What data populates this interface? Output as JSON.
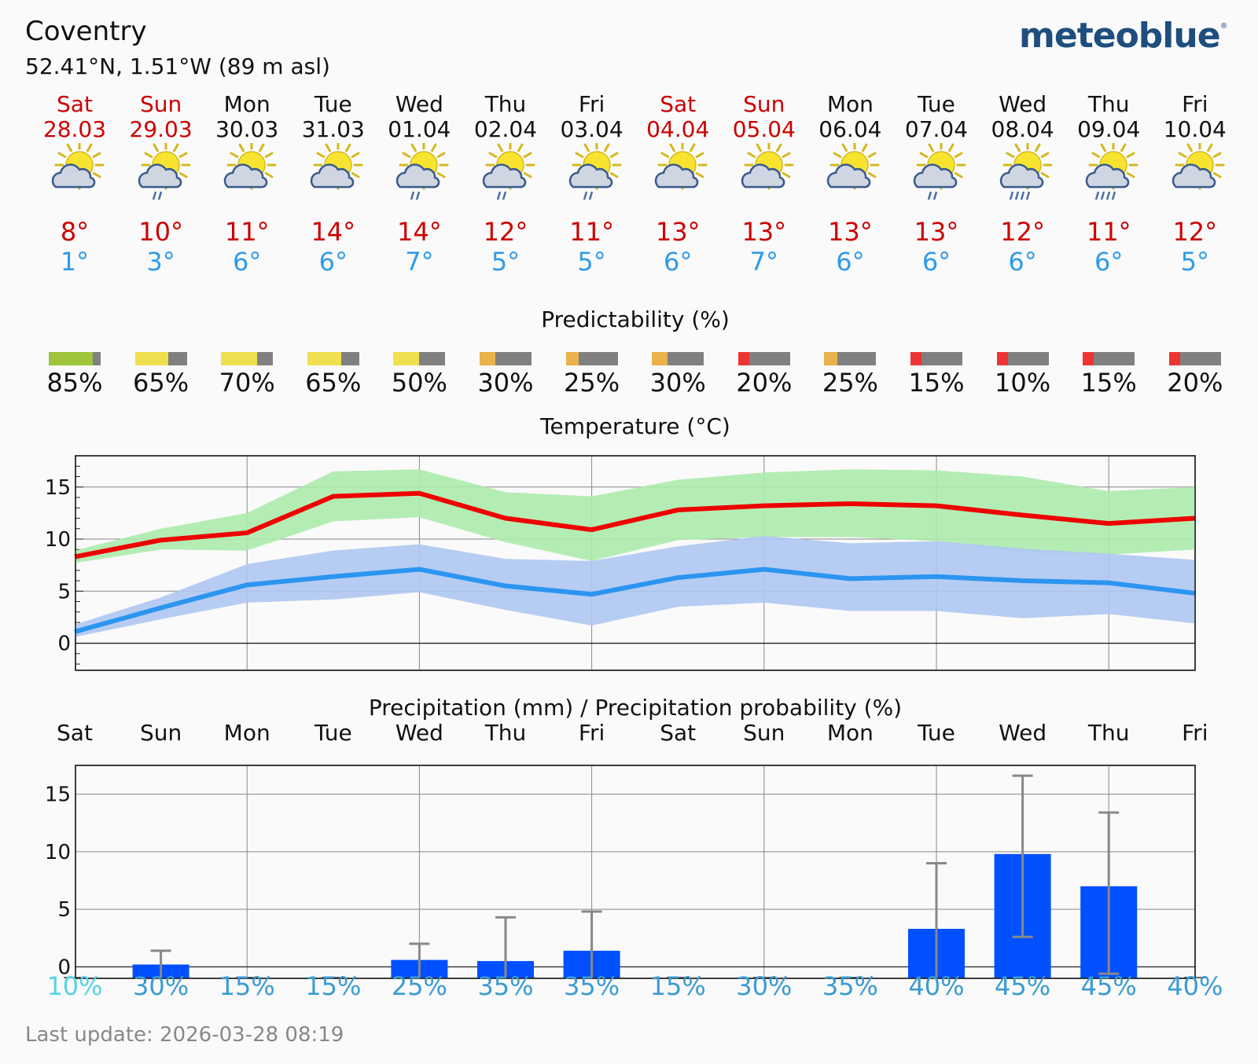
{
  "header": {
    "location": "Coventry",
    "coordinates": "52.41°N, 1.51°W (89 m asl)",
    "brand": "meteoblue",
    "brand_mark": "®"
  },
  "days": [
    {
      "name": "Sat",
      "date": "28.03",
      "weekend": true,
      "icon": "sun-cloud-icon",
      "tmax": "8°",
      "tmin": "1°"
    },
    {
      "name": "Sun",
      "date": "29.03",
      "weekend": true,
      "icon": "sun-cloud-drizzle-icon",
      "tmax": "10°",
      "tmin": "3°"
    },
    {
      "name": "Mon",
      "date": "30.03",
      "weekend": false,
      "icon": "sun-cloud-icon",
      "tmax": "11°",
      "tmin": "6°"
    },
    {
      "name": "Tue",
      "date": "31.03",
      "weekend": false,
      "icon": "sun-cloud-icon",
      "tmax": "14°",
      "tmin": "6°"
    },
    {
      "name": "Wed",
      "date": "01.04",
      "weekend": false,
      "icon": "sun-cloud-drizzle-icon",
      "tmax": "14°",
      "tmin": "7°"
    },
    {
      "name": "Thu",
      "date": "02.04",
      "weekend": false,
      "icon": "sun-cloud-drizzle-icon",
      "tmax": "12°",
      "tmin": "5°"
    },
    {
      "name": "Fri",
      "date": "03.04",
      "weekend": false,
      "icon": "sun-cloud-drizzle-icon",
      "tmax": "11°",
      "tmin": "5°"
    },
    {
      "name": "Sat",
      "date": "04.04",
      "weekend": true,
      "icon": "sun-cloud-icon",
      "tmax": "13°",
      "tmin": "6°"
    },
    {
      "name": "Sun",
      "date": "05.04",
      "weekend": true,
      "icon": "sun-cloud-icon",
      "tmax": "13°",
      "tmin": "7°"
    },
    {
      "name": "Mon",
      "date": "06.04",
      "weekend": false,
      "icon": "sun-cloud-icon",
      "tmax": "13°",
      "tmin": "6°"
    },
    {
      "name": "Tue",
      "date": "07.04",
      "weekend": false,
      "icon": "sun-cloud-drizzle-icon",
      "tmax": "13°",
      "tmin": "6°"
    },
    {
      "name": "Wed",
      "date": "08.04",
      "weekend": false,
      "icon": "sun-cloud-rain-icon",
      "tmax": "12°",
      "tmin": "6°"
    },
    {
      "name": "Thu",
      "date": "09.04",
      "weekend": false,
      "icon": "sun-cloud-rain-icon",
      "tmax": "11°",
      "tmin": "6°"
    },
    {
      "name": "Fri",
      "date": "10.04",
      "weekend": false,
      "icon": "sun-cloud-icon",
      "tmax": "12°",
      "tmin": "5°"
    }
  ],
  "predictability": {
    "title": "Predictability (%)",
    "items": [
      {
        "label": "85%",
        "value": 85,
        "color": "#9dc43b"
      },
      {
        "label": "65%",
        "value": 65,
        "color": "#f0e050"
      },
      {
        "label": "70%",
        "value": 70,
        "color": "#f0e050"
      },
      {
        "label": "65%",
        "value": 65,
        "color": "#f0e050"
      },
      {
        "label": "50%",
        "value": 50,
        "color": "#f0e050"
      },
      {
        "label": "30%",
        "value": 30,
        "color": "#eab24a"
      },
      {
        "label": "25%",
        "value": 25,
        "color": "#eab24a"
      },
      {
        "label": "30%",
        "value": 30,
        "color": "#eab24a"
      },
      {
        "label": "20%",
        "value": 20,
        "color": "#ee3333"
      },
      {
        "label": "25%",
        "value": 25,
        "color": "#eab24a"
      },
      {
        "label": "15%",
        "value": 15,
        "color": "#ee3333"
      },
      {
        "label": "10%",
        "value": 10,
        "color": "#ee3333"
      },
      {
        "label": "15%",
        "value": 15,
        "color": "#ee3333"
      },
      {
        "label": "20%",
        "value": 20,
        "color": "#ee3333"
      }
    ],
    "remainder_color": "#808080"
  },
  "chart_data": [
    {
      "type": "line",
      "title": "Temperature (°C)",
      "xlabel": "",
      "ylabel": "",
      "ylim": [
        -2.6,
        18
      ],
      "yticks": [
        "0",
        "5",
        "10",
        "15"
      ],
      "x": [
        "Sat",
        "Sun",
        "Mon",
        "Tue",
        "Wed",
        "Thu",
        "Fri",
        "Sat",
        "Sun",
        "Mon",
        "Tue",
        "Wed",
        "Thu",
        "Fri"
      ],
      "series": [
        {
          "name": "Max temperature",
          "color": "#ee0000",
          "values": [
            8.3,
            9.9,
            10.6,
            14.1,
            14.4,
            12.0,
            10.9,
            12.8,
            13.2,
            13.4,
            13.2,
            12.3,
            11.5,
            12.0
          ]
        },
        {
          "name": "Max temperature range high",
          "color": "#acebac",
          "values": [
            8.9,
            11.0,
            12.5,
            16.5,
            16.7,
            14.5,
            14.1,
            15.7,
            16.4,
            16.7,
            16.6,
            16.0,
            14.6,
            15.0
          ]
        },
        {
          "name": "Max temperature range low",
          "color": "#acebac",
          "values": [
            7.7,
            9.0,
            8.9,
            11.7,
            12.1,
            9.7,
            7.9,
            9.9,
            10.2,
            10.2,
            9.8,
            8.7,
            8.5,
            9.0
          ]
        },
        {
          "name": "Min temperature",
          "color": "#2b95f0",
          "values": [
            1.1,
            3.4,
            5.6,
            6.4,
            7.1,
            5.5,
            4.7,
            6.3,
            7.1,
            6.2,
            6.4,
            6.0,
            5.8,
            4.8
          ]
        },
        {
          "name": "Min temperature range high",
          "color": "#aec6f2",
          "values": [
            1.8,
            4.4,
            7.6,
            8.9,
            9.5,
            8.1,
            7.9,
            9.3,
            10.3,
            9.6,
            9.8,
            9.1,
            8.6,
            8.0
          ]
        },
        {
          "name": "Min temperature range low",
          "color": "#aec6f2",
          "values": [
            0.6,
            2.3,
            3.9,
            4.2,
            4.9,
            3.2,
            1.7,
            3.5,
            3.9,
            3.1,
            3.1,
            2.4,
            2.8,
            1.9
          ]
        }
      ]
    },
    {
      "type": "bar",
      "title": "Precipitation (mm) / Precipitation probability (%)",
      "xlabel": "",
      "ylabel": "",
      "ylim": [
        -1,
        17.5
      ],
      "yticks": [
        "0",
        "5",
        "10",
        "15"
      ],
      "categories": [
        "Sat",
        "Sun",
        "Mon",
        "Tue",
        "Wed",
        "Thu",
        "Fri",
        "Sat",
        "Sun",
        "Mon",
        "Tue",
        "Wed",
        "Thu",
        "Fri"
      ],
      "series": [
        {
          "name": "Precipitation (mm)",
          "color": "#0050ff",
          "values": [
            0.0,
            0.2,
            0.0,
            0.0,
            0.6,
            0.5,
            1.4,
            0.0,
            0.0,
            0.0,
            3.3,
            9.8,
            7.0,
            0.0
          ]
        },
        {
          "name": "Precipitation range max (mm)",
          "color": "#888888",
          "values": [
            0.0,
            1.4,
            0.0,
            0.0,
            2.0,
            4.3,
            4.8,
            0.0,
            0.0,
            0.0,
            9.0,
            16.6,
            13.4,
            0.0
          ]
        },
        {
          "name": "Precipitation range min (mm)",
          "color": "#888888",
          "values": [
            0.0,
            0.0,
            0.0,
            0.0,
            0.0,
            0.0,
            0.0,
            0.0,
            0.0,
            0.0,
            0.0,
            2.6,
            -0.6,
            0.0
          ]
        }
      ],
      "probability": [
        "10%",
        "30%",
        "15%",
        "15%",
        "25%",
        "35%",
        "35%",
        "15%",
        "30%",
        "35%",
        "40%",
        "45%",
        "45%",
        "40%"
      ],
      "probability_values": [
        10,
        30,
        15,
        15,
        25,
        35,
        35,
        15,
        30,
        35,
        40,
        45,
        45,
        40
      ],
      "probability_color_low": "#55d3e8",
      "probability_color": "#3a9bd4"
    }
  ],
  "footer": {
    "last_update": "Last update: 2026-03-28 08:19"
  }
}
